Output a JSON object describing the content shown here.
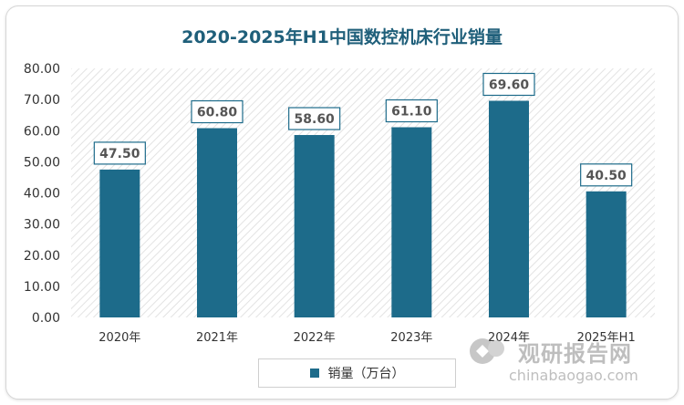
{
  "chart_data": {
    "type": "bar",
    "title": "2020-2025年H1中国数控机床行业销量",
    "categories": [
      "2020年",
      "2021年",
      "2022年",
      "2023年",
      "2024年",
      "2025年H1"
    ],
    "series": [
      {
        "name": "销量（万台）",
        "values": [
          47.5,
          60.8,
          58.6,
          61.1,
          69.6,
          40.5
        ]
      }
    ],
    "data_labels": [
      "47.50",
      "60.80",
      "58.60",
      "61.10",
      "69.60",
      "40.50"
    ],
    "y_ticks": [
      "0.00",
      "10.00",
      "20.00",
      "30.00",
      "40.00",
      "50.00",
      "60.00",
      "70.00",
      "80.00"
    ],
    "ylim": [
      0,
      80
    ],
    "xlabel": "",
    "ylabel": "",
    "legend_position": "bottom",
    "bar_color": "#1d6b8a",
    "title_color": "#1f5f7a"
  },
  "watermark": {
    "main_text": "观研报告网",
    "url_text": "chinabaogao.com"
  }
}
